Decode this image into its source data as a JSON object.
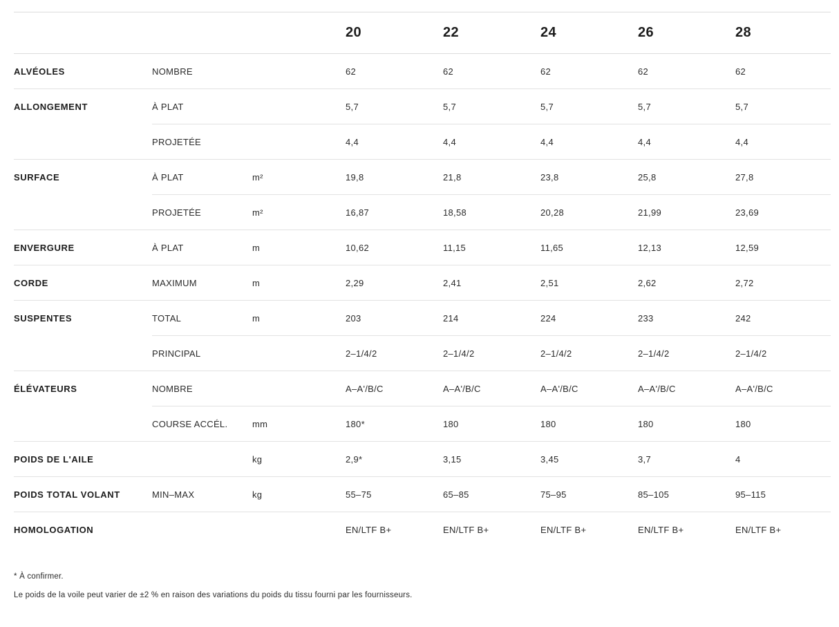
{
  "table": {
    "sizes": [
      "20",
      "22",
      "24",
      "26",
      "28"
    ],
    "rows": [
      {
        "label": "ALVÉOLES",
        "sub": "NOMBRE",
        "unit": "",
        "divider": "full",
        "values": [
          "62",
          "62",
          "62",
          "62",
          "62"
        ]
      },
      {
        "label": "ALLONGEMENT",
        "sub": "À PLAT",
        "unit": "",
        "divider": "partial",
        "values": [
          "5,7",
          "5,7",
          "5,7",
          "5,7",
          "5,7"
        ]
      },
      {
        "label": "",
        "sub": "PROJETÉE",
        "unit": "",
        "divider": "full",
        "values": [
          "4,4",
          "4,4",
          "4,4",
          "4,4",
          "4,4"
        ]
      },
      {
        "label": "SURFACE",
        "sub": "À PLAT",
        "unit": "m²",
        "divider": "partial",
        "values": [
          "19,8",
          "21,8",
          "23,8",
          "25,8",
          "27,8"
        ]
      },
      {
        "label": "",
        "sub": "PROJETÉE",
        "unit": "m²",
        "divider": "full",
        "values": [
          "16,87",
          "18,58",
          "20,28",
          "21,99",
          "23,69"
        ]
      },
      {
        "label": "ENVERGURE",
        "sub": "À PLAT",
        "unit": "m",
        "divider": "full",
        "values": [
          "10,62",
          "11,15",
          "11,65",
          "12,13",
          "12,59"
        ]
      },
      {
        "label": "CORDE",
        "sub": "MAXIMUM",
        "unit": "m",
        "divider": "full",
        "values": [
          "2,29",
          "2,41",
          "2,51",
          "2,62",
          "2,72"
        ]
      },
      {
        "label": "SUSPENTES",
        "sub": "TOTAL",
        "unit": "m",
        "divider": "partial",
        "values": [
          "203",
          "214",
          "224",
          "233",
          "242"
        ]
      },
      {
        "label": "",
        "sub": "PRINCIPAL",
        "unit": "",
        "divider": "full",
        "values": [
          "2–1/4/2",
          "2–1/4/2",
          "2–1/4/2",
          "2–1/4/2",
          "2–1/4/2"
        ]
      },
      {
        "label": "ÉLÉVATEURS",
        "sub": "NOMBRE",
        "unit": "",
        "divider": "partial",
        "values": [
          "A–A'/B/C",
          "A–A'/B/C",
          "A–A'/B/C",
          "A–A'/B/C",
          "A–A'/B/C"
        ]
      },
      {
        "label": "",
        "sub": "COURSE ACCÉL.",
        "unit": "mm",
        "divider": "full",
        "values": [
          "180*",
          "180",
          "180",
          "180",
          "180"
        ]
      },
      {
        "label": "POIDS DE L'AILE",
        "sub": "",
        "unit": "kg",
        "divider": "full",
        "values": [
          "2,9*",
          "3,15",
          "3,45",
          "3,7",
          "4"
        ]
      },
      {
        "label": "POIDS TOTAL VOLANT",
        "sub": "MIN–MAX",
        "unit": "kg",
        "divider": "full",
        "values": [
          "55–75",
          "65–85",
          "75–95",
          "85–105",
          "95–115"
        ]
      },
      {
        "label": "HOMOLOGATION",
        "sub": "",
        "unit": "",
        "divider": "none",
        "values": [
          "EN/LTF B+",
          "EN/LTF B+",
          "EN/LTF B+",
          "EN/LTF B+",
          "EN/LTF B+"
        ]
      }
    ]
  },
  "footnotes": [
    "* À confirmer.",
    "Le poids de la voile peut varier de ±2 % en raison des variations du poids du tissu fourni par les fournisseurs."
  ]
}
